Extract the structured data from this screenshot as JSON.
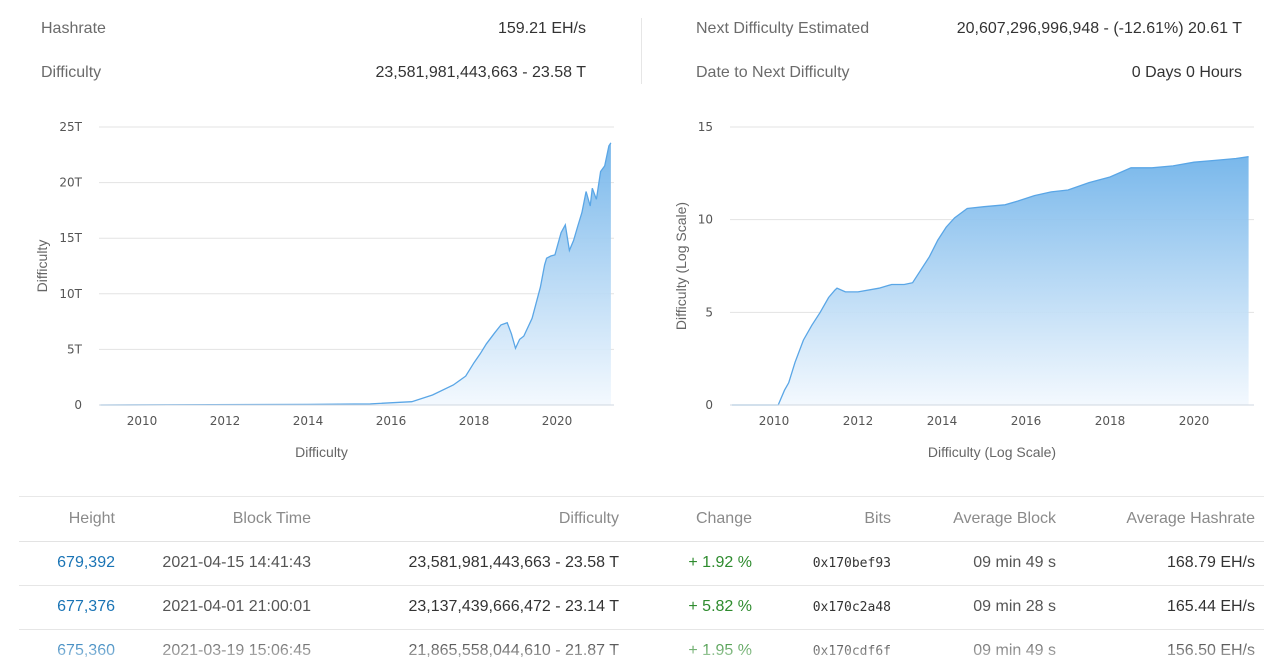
{
  "stats": {
    "hashrate": {
      "label": "Hashrate",
      "value": "159.21 EH/s"
    },
    "difficulty": {
      "label": "Difficulty",
      "value": "23,581,981,443,663 - 23.58 T"
    },
    "next_difficulty": {
      "label": "Next Difficulty Estimated",
      "value": "20,607,296,996,948 - (-12.61%) 20.61 T"
    },
    "date_next": {
      "label": "Date to Next Difficulty",
      "value": "0 Days 0 Hours"
    }
  },
  "colors": {
    "area_top": "#72b4ea",
    "area_bottom": "#f2f8fe",
    "line": "#5aa6e6",
    "link": "#1a74b5",
    "positive": "#2e8b2e"
  },
  "chart_data": [
    {
      "type": "area",
      "ylabel": "Difficulty",
      "xlabel": "Difficulty",
      "x_ticks": [
        "2010",
        "2012",
        "2014",
        "2016",
        "2018",
        "2020"
      ],
      "y_ticks": [
        "0",
        "5T",
        "10T",
        "15T",
        "20T",
        "25T"
      ],
      "xlim": [
        2009.0,
        2021.3
      ],
      "ylim": [
        0,
        25
      ],
      "grid": true,
      "x": [
        2009.0,
        2014.0,
        2015.5,
        2016.5,
        2017.0,
        2017.5,
        2017.8,
        2018.0,
        2018.15,
        2018.3,
        2018.5,
        2018.65,
        2018.8,
        2018.9,
        2019.0,
        2019.1,
        2019.2,
        2019.4,
        2019.6,
        2019.7,
        2019.75,
        2019.85,
        2019.95,
        2020.1,
        2020.2,
        2020.3,
        2020.4,
        2020.5,
        2020.6,
        2020.7,
        2020.8,
        2020.85,
        2020.95,
        2021.05,
        2021.15,
        2021.25,
        2021.3
      ],
      "values": [
        0.0,
        0.05,
        0.1,
        0.3,
        0.9,
        1.8,
        2.6,
        3.8,
        4.6,
        5.5,
        6.5,
        7.2,
        7.4,
        6.4,
        5.1,
        5.9,
        6.2,
        7.8,
        10.6,
        12.6,
        13.2,
        13.4,
        13.5,
        15.5,
        16.2,
        13.9,
        14.8,
        16.1,
        17.3,
        19.2,
        17.9,
        19.5,
        18.5,
        21.0,
        21.5,
        23.3,
        23.58
      ]
    },
    {
      "type": "area",
      "ylabel": "Difficulty (Log Scale)",
      "xlabel": "Difficulty (Log Scale)",
      "x_ticks": [
        "2010",
        "2012",
        "2014",
        "2016",
        "2018",
        "2020"
      ],
      "y_ticks": [
        "0",
        "5",
        "10",
        "15"
      ],
      "xlim": [
        2009.0,
        2021.3
      ],
      "ylim": [
        0,
        15
      ],
      "grid": true,
      "x": [
        2009.0,
        2010.1,
        2010.25,
        2010.35,
        2010.5,
        2010.7,
        2010.9,
        2011.1,
        2011.3,
        2011.45,
        2011.5,
        2011.7,
        2012.0,
        2012.5,
        2012.8,
        2013.1,
        2013.3,
        2013.5,
        2013.7,
        2013.9,
        2014.1,
        2014.3,
        2014.6,
        2015.0,
        2015.5,
        2015.8,
        2016.2,
        2016.6,
        2017.0,
        2017.5,
        2018.0,
        2018.5,
        2019.0,
        2019.5,
        2020.0,
        2020.5,
        2021.0,
        2021.3
      ],
      "values": [
        0.0,
        0.0,
        0.8,
        1.2,
        2.3,
        3.5,
        4.3,
        5.0,
        5.8,
        6.2,
        6.3,
        6.1,
        6.1,
        6.3,
        6.5,
        6.5,
        6.6,
        7.3,
        8.0,
        8.9,
        9.6,
        10.1,
        10.6,
        10.7,
        10.8,
        11.0,
        11.3,
        11.5,
        11.6,
        12.0,
        12.3,
        12.8,
        12.8,
        12.9,
        13.1,
        13.2,
        13.3,
        13.4
      ]
    }
  ],
  "table": {
    "columns": [
      "Height",
      "Block Time",
      "Difficulty",
      "Change",
      "Bits",
      "Average Block",
      "Average Hashrate"
    ],
    "rows": [
      {
        "height": "679,392",
        "time": "2021-04-15 14:41:43",
        "difficulty": "23,581,981,443,663 - 23.58 T",
        "change": "+ 1.92 %",
        "bits": "0x170bef93",
        "avg_block": "09 min 49 s",
        "avg_hashrate": "168.79 EH/s"
      },
      {
        "height": "677,376",
        "time": "2021-04-01 21:00:01",
        "difficulty": "23,137,439,666,472 - 23.14 T",
        "change": "+ 5.82 %",
        "bits": "0x170c2a48",
        "avg_block": "09 min 28 s",
        "avg_hashrate": "165.44 EH/s"
      },
      {
        "height": "675,360",
        "time": "2021-03-19 15:06:45",
        "difficulty": "21,865,558,044,610 - 21.87 T",
        "change": "+ 1.95 %",
        "bits": "0x170cdf6f",
        "avg_block": "09 min 49 s",
        "avg_hashrate": "156.50 EH/s"
      }
    ]
  }
}
